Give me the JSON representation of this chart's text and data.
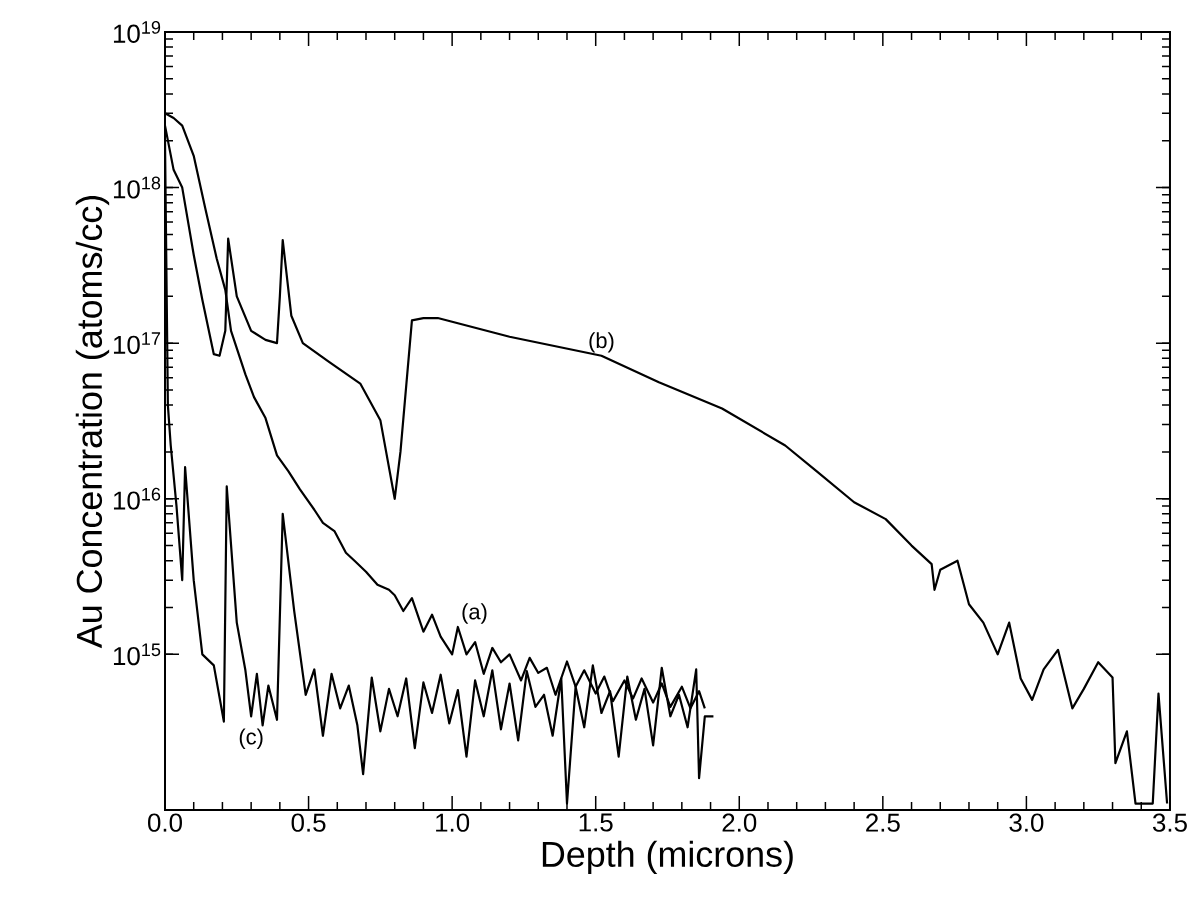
{
  "chart_data": {
    "type": "line",
    "xlabel": "Depth (microns)",
    "ylabel": "Au Concentration (atoms/cc)",
    "log": "y",
    "xlim": [
      0,
      3.5
    ],
    "ylim": [
      100000000000000.0,
      1e+19
    ],
    "xticks": [
      {
        "value": 0,
        "label": "0.0"
      },
      {
        "value": 0.5,
        "label": "0.5"
      },
      {
        "value": 1,
        "label": "1.0"
      },
      {
        "value": 1.5,
        "label": "1.5"
      },
      {
        "value": 2,
        "label": "2.0"
      },
      {
        "value": 2.5,
        "label": "2.5"
      },
      {
        "value": 3,
        "label": "3.0"
      },
      {
        "value": 3.5,
        "label": "3.5"
      }
    ],
    "yticks": [
      {
        "value": 1000000000000000.0,
        "label": "10$^{15}$"
      },
      {
        "value": 1e+16,
        "label": "10$^{16}$"
      },
      {
        "value": 1e+17,
        "label": "10$^{17}$"
      },
      {
        "value": 1e+18,
        "label": "10$^{18}$"
      },
      {
        "value": 1e+19,
        "label": "10$^{19}$"
      }
    ],
    "line_style": "solid",
    "series": [
      {
        "name": "(a)",
        "color": "#000000",
        "x": [
          0,
          0.03,
          0.06,
          0.1,
          0.14,
          0.18,
          0.21,
          0.23,
          0.28,
          0.31,
          0.35,
          0.39,
          0.43,
          0.47,
          0.52,
          0.55,
          0.59,
          0.63,
          0.66,
          0.7,
          0.74,
          0.78,
          0.8,
          0.83,
          0.86,
          0.9,
          0.93,
          0.96,
          1.0,
          1.02,
          1.05,
          1.08,
          1.11,
          1.14,
          1.17,
          1.2,
          1.24,
          1.27,
          1.3,
          1.33,
          1.36,
          1.4,
          1.43,
          1.46,
          1.5,
          1.53,
          1.56,
          1.6,
          1.63,
          1.66,
          1.7,
          1.73,
          1.76,
          1.8,
          1.83,
          1.86,
          1.88
        ],
        "values": [
          3e+18,
          2.8e+18,
          2.5e+18,
          1.6e+18,
          7.4e+17,
          3.5e+17,
          2.2e+17,
          1.2e+17,
          6.3e+16,
          4.5e+16,
          3.3e+16,
          1.9e+16,
          1.5e+16,
          1.15e+16,
          8500000000000000.0,
          7000000000000000.0,
          6200000000000000.0,
          4500000000000000.0,
          4000000000000000.0,
          3400000000000000.0,
          2800000000000000.0,
          2600000000000000.0,
          2400000000000000.0,
          1900000000000000.0,
          2300000000000000.0,
          1400000000000000.0,
          1800000000000000.0,
          1300000000000000.0,
          1000000000000000.0,
          1500000000000000.0,
          1000000000000000.0,
          1200000000000000.0,
          750000000000000.0,
          1100000000000000.0,
          890000000000000.0,
          1000000000000000.0,
          680000000000000.0,
          950000000000000.0,
          760000000000000.0,
          820000000000000.0,
          550000000000000.0,
          900000000000000.0,
          620000000000000.0,
          790000000000000.0,
          560000000000000.0,
          720000000000000.0,
          500000000000000.0,
          680000000000000.0,
          520000000000000.0,
          700000000000000.0,
          490000000000000.0,
          650000000000000.0,
          460000000000000.0,
          620000000000000.0,
          450000000000000.0,
          580000000000000.0,
          450000000000000.0
        ]
      },
      {
        "name": "(b)",
        "color": "#000000",
        "x": [
          0,
          0.03,
          0.06,
          0.1,
          0.13,
          0.17,
          0.19,
          0.21,
          0.22,
          0.25,
          0.3,
          0.35,
          0.39,
          0.4,
          0.41,
          0.44,
          0.48,
          0.57,
          0.68,
          0.75,
          0.8,
          0.82,
          0.86,
          0.9,
          0.95,
          1.2,
          1.52,
          1.72,
          1.94,
          2.16,
          2.27,
          2.4,
          2.51,
          2.6,
          2.67,
          2.68,
          2.7,
          2.76,
          2.8,
          2.85,
          2.9,
          2.94,
          2.98,
          3.02,
          3.06,
          3.11,
          3.16,
          3.2,
          3.25,
          3.3,
          3.31,
          3.35,
          3.38,
          3.44,
          3.46,
          3.49
        ],
        "values": [
          2.5e+18,
          1.3e+18,
          1e+18,
          3.7e+17,
          1.9e+17,
          8.5e+16,
          8.3e+16,
          1.2e+17,
          4.7e+17,
          2e+17,
          1.2e+17,
          1.05e+17,
          1e+17,
          2e+17,
          4.6e+17,
          1.5e+17,
          1e+17,
          7.6e+16,
          5.5e+16,
          3.2e+16,
          1e+16,
          2e+16,
          1.4e+17,
          1.45e+17,
          1.45e+17,
          1.1e+17,
          8.3e+16,
          5.6e+16,
          3.8e+16,
          2.2e+16,
          1.5e+16,
          9500000000000000.0,
          7400000000000000.0,
          5000000000000000.0,
          3800000000000000.0,
          2600000000000000.0,
          3500000000000000.0,
          4000000000000000.0,
          2100000000000000.0,
          1600000000000000.0,
          1000000000000000.0,
          1600000000000000.0,
          700000000000000.0,
          510000000000000.0,
          800000000000000.0,
          1070000000000000.0,
          450000000000000.0,
          600000000000000.0,
          890000000000000.0,
          710000000000000.0,
          200000000000000.0,
          320000000000000.0,
          110000000000000.0,
          110000000000000.0,
          560000000000000.0,
          110000000000000.0
        ]
      },
      {
        "name": "(c)",
        "color": "#000000",
        "x": [
          0,
          0.01,
          0.02,
          0.04,
          0.06,
          0.07,
          0.1,
          0.13,
          0.17,
          0.205,
          0.215,
          0.25,
          0.28,
          0.3,
          0.32,
          0.34,
          0.36,
          0.39,
          0.41,
          0.45,
          0.49,
          0.52,
          0.55,
          0.58,
          0.61,
          0.64,
          0.67,
          0.69,
          0.72,
          0.75,
          0.78,
          0.81,
          0.84,
          0.87,
          0.9,
          0.93,
          0.96,
          0.99,
          1.02,
          1.05,
          1.08,
          1.11,
          1.14,
          1.17,
          1.2,
          1.23,
          1.26,
          1.29,
          1.32,
          1.35,
          1.38,
          1.4,
          1.43,
          1.46,
          1.49,
          1.52,
          1.55,
          1.58,
          1.61,
          1.64,
          1.67,
          1.7,
          1.73,
          1.76,
          1.79,
          1.82,
          1.85,
          1.86,
          1.88,
          1.91
        ],
        "values": [
          2e+18,
          4e+16,
          2.2e+16,
          9000000000000000.0,
          3000000000000000.0,
          1.6e+16,
          3000000000000000.0,
          1000000000000000.0,
          850000000000000.0,
          370000000000000.0,
          1.2e+16,
          1600000000000000.0,
          790000000000000.0,
          400000000000000.0,
          750000000000000.0,
          350000000000000.0,
          630000000000000.0,
          380000000000000.0,
          8000000000000000.0,
          1900000000000000.0,
          550000000000000.0,
          800000000000000.0,
          300000000000000.0,
          750000000000000.0,
          450000000000000.0,
          630000000000000.0,
          350000000000000.0,
          170000000000000.0,
          710000000000000.0,
          320000000000000.0,
          600000000000000.0,
          400000000000000.0,
          700000000000000.0,
          250000000000000.0,
          660000000000000.0,
          420000000000000.0,
          740000000000000.0,
          360000000000000.0,
          590000000000000.0,
          220000000000000.0,
          680000000000000.0,
          400000000000000.0,
          790000000000000.0,
          330000000000000.0,
          650000000000000.0,
          280000000000000.0,
          780000000000000.0,
          460000000000000.0,
          550000000000000.0,
          300000000000000.0,
          700000000000000.0,
          110000000000000.0,
          620000000000000.0,
          340000000000000.0,
          850000000000000.0,
          420000000000000.0,
          580000000000000.0,
          220000000000000.0,
          720000000000000.0,
          380000000000000.0,
          600000000000000.0,
          260000000000000.0,
          820000000000000.0,
          400000000000000.0,
          550000000000000.0,
          340000000000000.0,
          800000000000000.0,
          160000000000000.0,
          400000000000000.0,
          400000000000000.0
        ]
      }
    ],
    "legend": false
  }
}
